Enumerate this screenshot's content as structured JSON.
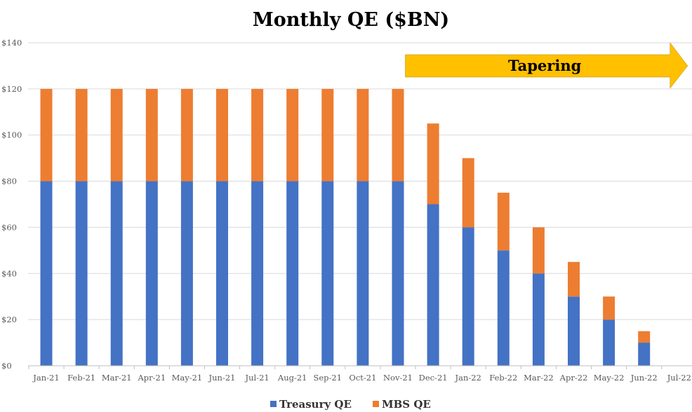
{
  "chart_data": {
    "type": "bar",
    "stacked": true,
    "title": "Monthly QE ($BN)",
    "categories": [
      "Jan-21",
      "Feb-21",
      "Mar-21",
      "Apr-21",
      "May-21",
      "Jun-21",
      "Jul-21",
      "Aug-21",
      "Sep-21",
      "Oct-21",
      "Nov-21",
      "Dec-21",
      "Jan-22",
      "Feb-22",
      "Mar-22",
      "Apr-22",
      "May-22",
      "Jun-22",
      "Jul-22"
    ],
    "series": [
      {
        "name": "Treasury QE",
        "color": "#4472C4",
        "values": [
          80,
          80,
          80,
          80,
          80,
          80,
          80,
          80,
          80,
          80,
          80,
          70,
          60,
          50,
          40,
          30,
          20,
          10,
          0
        ]
      },
      {
        "name": "MBS QE",
        "color": "#ED7D31",
        "values": [
          40,
          40,
          40,
          40,
          40,
          40,
          40,
          40,
          40,
          40,
          40,
          35,
          30,
          25,
          20,
          15,
          10,
          5,
          0
        ]
      }
    ],
    "ylim": [
      0,
      140
    ],
    "yticks": [
      0,
      20,
      40,
      60,
      80,
      100,
      120,
      140
    ],
    "ytick_labels": [
      "$0",
      "$20",
      "$40",
      "$60",
      "$80",
      "$100",
      "$120",
      "$140"
    ],
    "grid": true,
    "legend_position": "bottom",
    "annotation": {
      "text": "Tapering",
      "color": "#FFC000",
      "from_category": "Nov-21",
      "to_category": "Jul-22"
    }
  }
}
